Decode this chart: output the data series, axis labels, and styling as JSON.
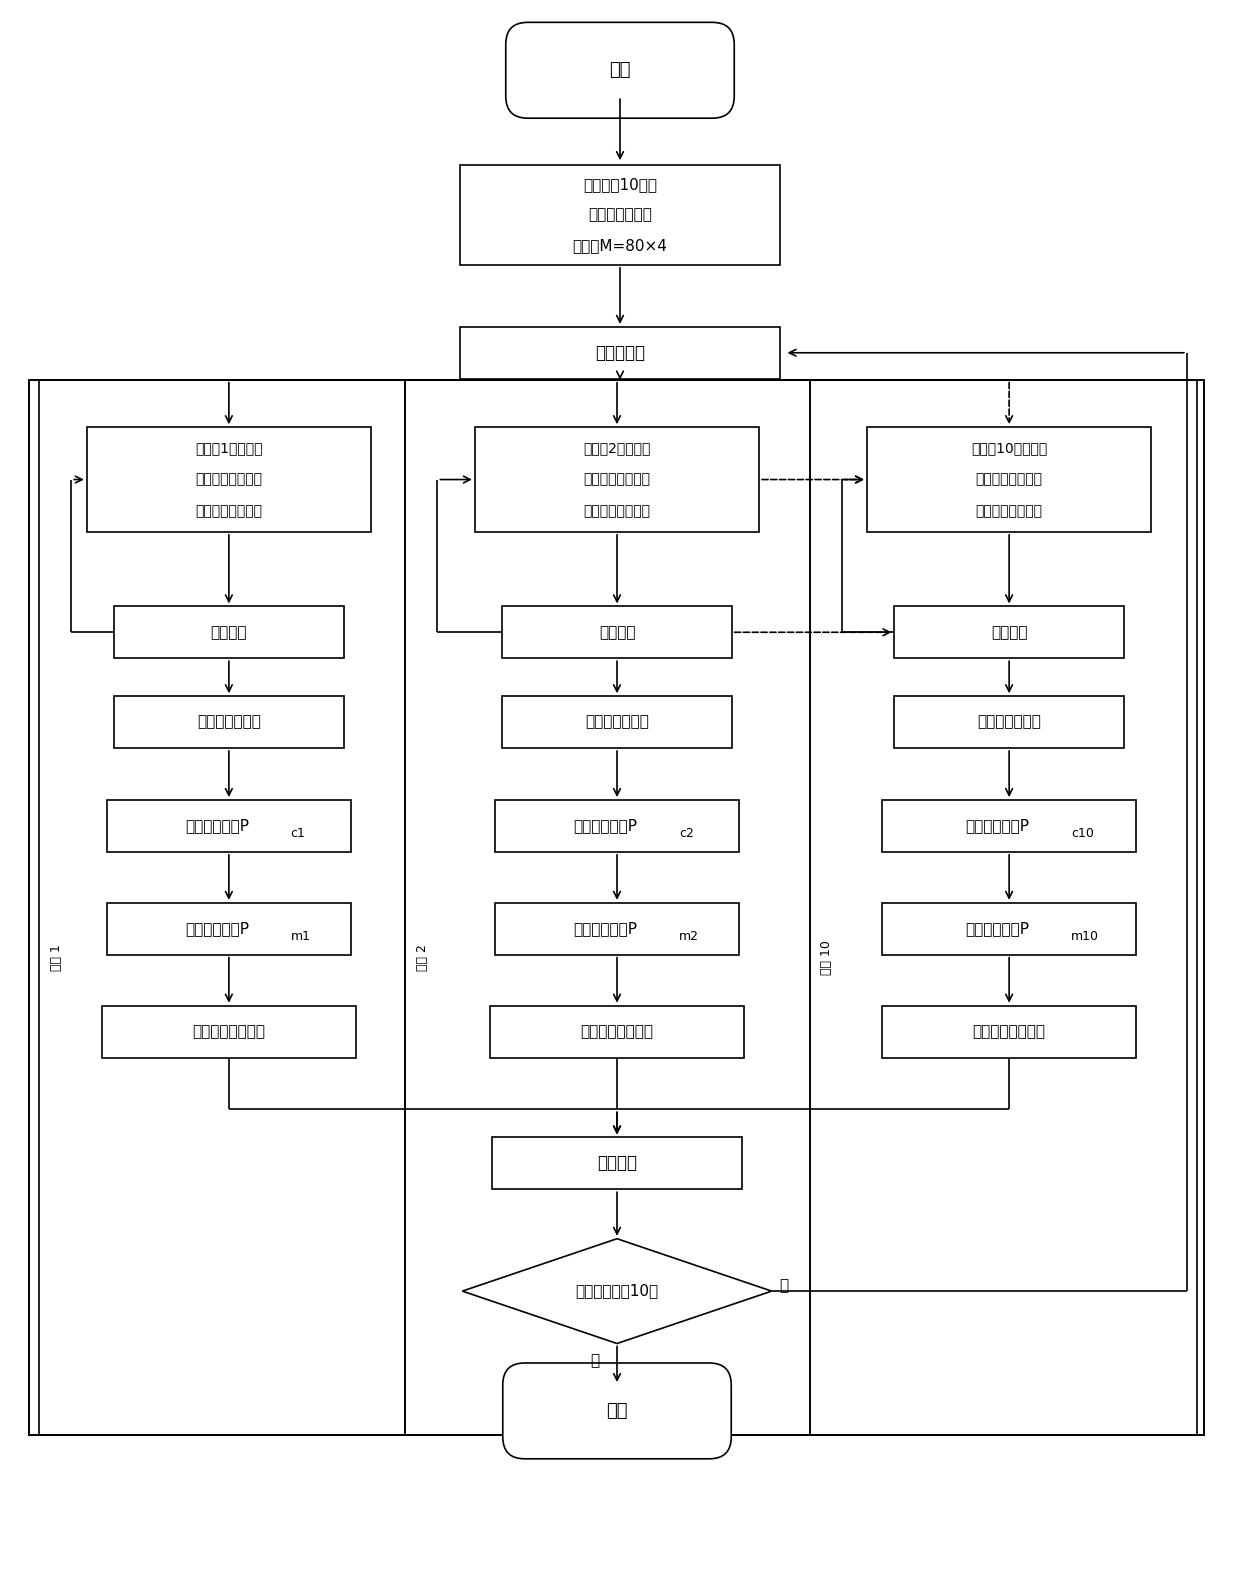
{
  "bg_color": "#ffffff",
  "line_color": "#000000",
  "font_color": "#000000",
  "fig_width": 12.4,
  "fig_height": 15.74,
  "start_text": "开始",
  "init_line1": "随机产生10个子",
  "init_line2": "种群，每个子种",
  "init_line3": "群大小M=80×4",
  "expand_text": "展开多种群",
  "elite_text": "精华种群",
  "decision_text": "最优个体保抉10代",
  "end_text": "结束",
  "col1_replace_l1": "将种群1中目标函",
  "col1_replace_l2": "数中的最大值用原",
  "col1_replace_l3": "种群中最小值代替",
  "col2_replace_l1": "将种群2中目标函",
  "col2_replace_l2": "数中的最大值用原",
  "col2_replace_l3": "种群中最小值代替",
  "col3_replace_l1": "将种群10中目标函",
  "col3_replace_l2": "数中的最大值用原",
  "col3_replace_l3": "种群中最小值代替",
  "eval_text": "个体评价",
  "wheel_text": "轮盘赌选择算子",
  "col1_cross": "随机交叉算子P",
  "col1_cross_sub": "c1",
  "col2_cross": "随机交叉算子P",
  "col2_cross_sub": "c2",
  "col3_cross": "随机交叉算子P",
  "col3_cross_sub": "c10",
  "col1_mut": "随机变异算子P",
  "col1_mut_sub": "m1",
  "col2_mut": "随机变异算子P",
  "col2_mut_sub": "m2",
  "col3_mut": "随机变异算子P",
  "col3_mut_sub": "m10",
  "output_text": "输出子种群最优解",
  "col1_label": "种群 1",
  "col2_label": "种群 2",
  "col3_label": "种群 10",
  "yes_label": "是",
  "no_label": "否"
}
